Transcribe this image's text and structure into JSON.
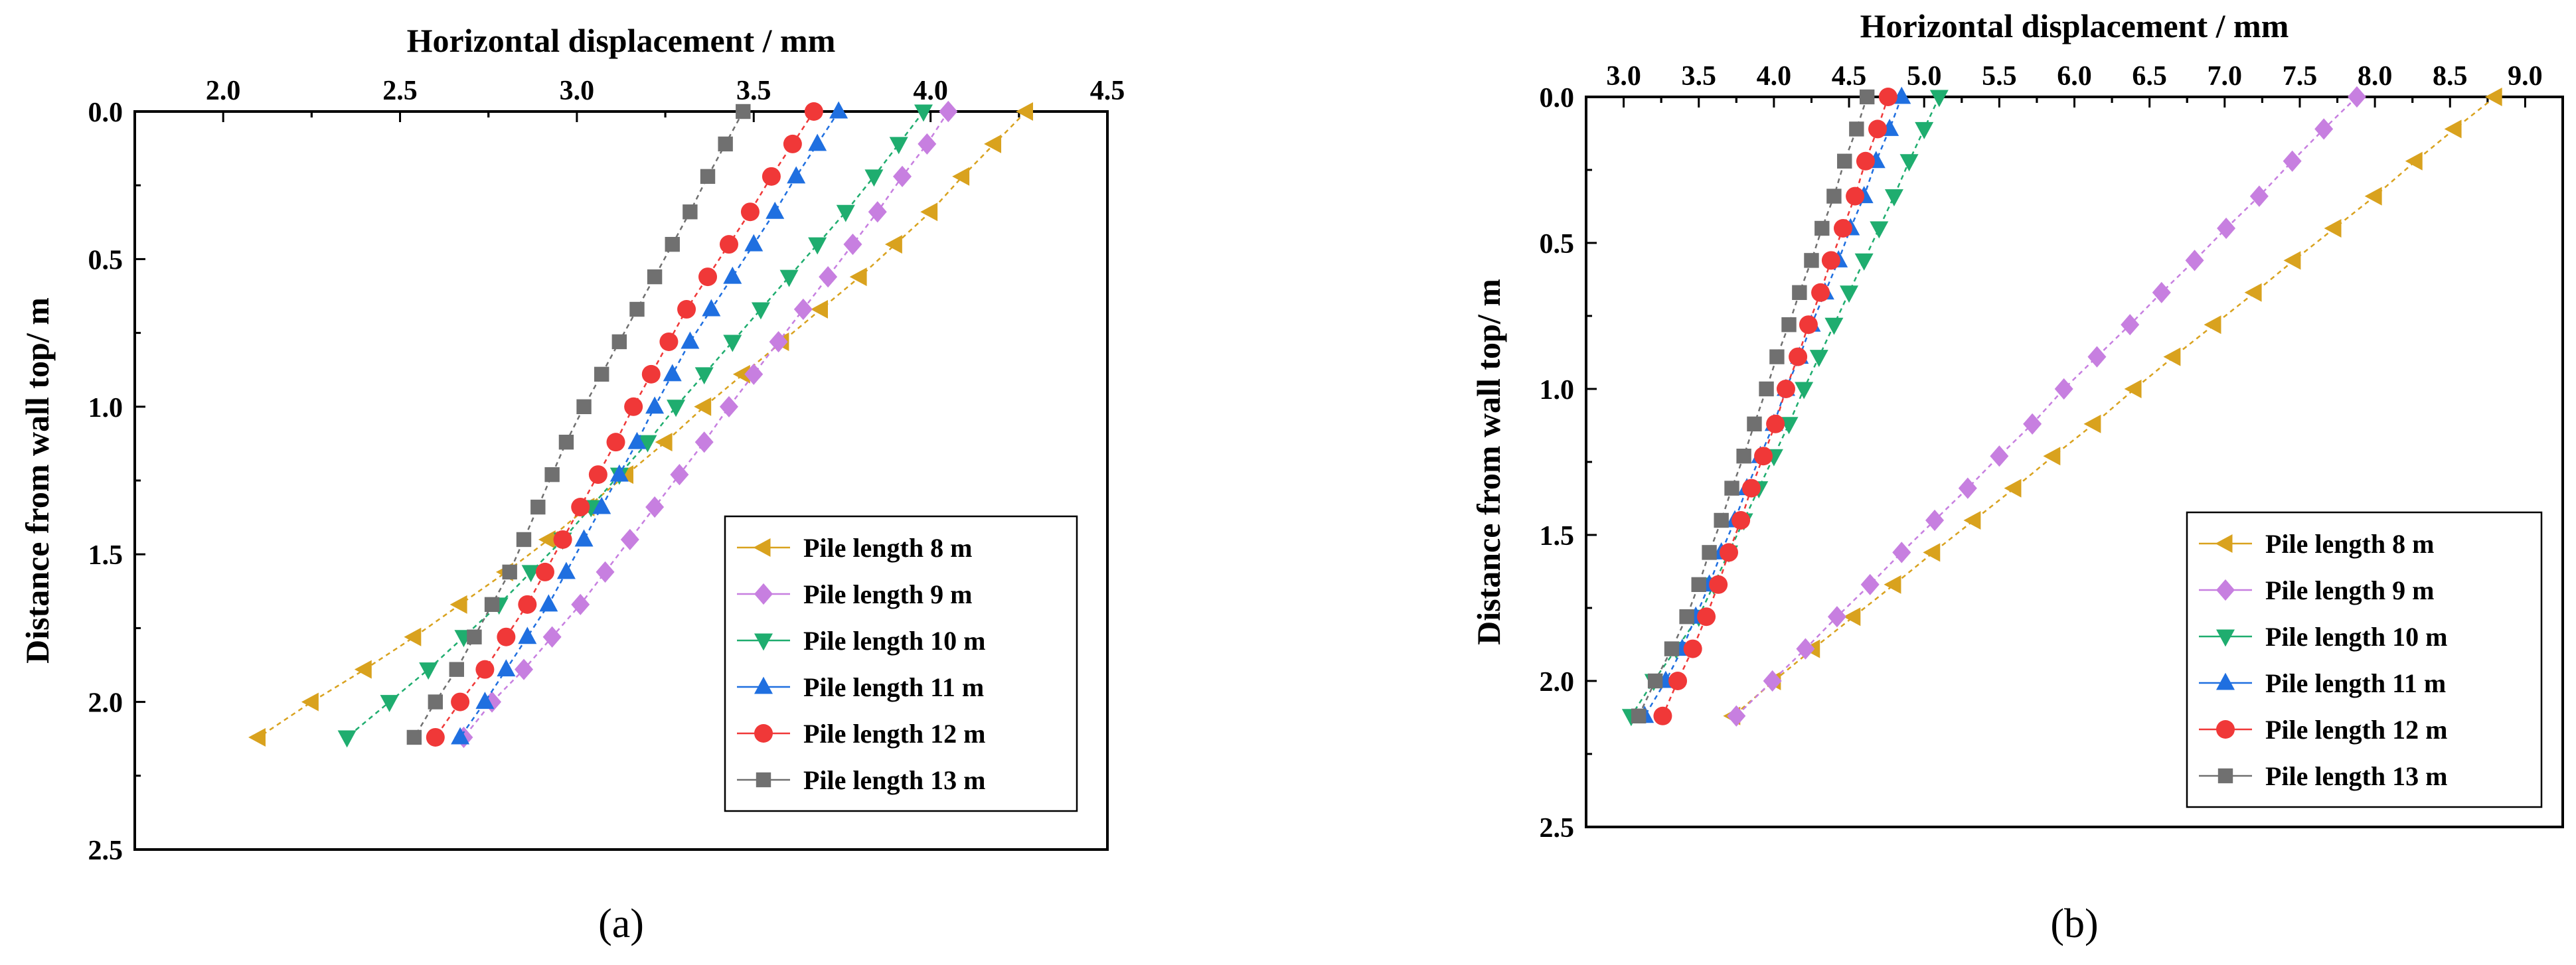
{
  "chart_data": [
    {
      "type": "line",
      "panel_label": "(a)",
      "xlabel": "Horizontal displacement / mm",
      "ylabel": "Distance from wall top/ m",
      "xlim": [
        1.75,
        4.5
      ],
      "ylim": [
        0,
        2.5
      ],
      "x_axis_position": "top",
      "y_inverted": true,
      "xticks": [
        "2.0",
        "2.5",
        "3.0",
        "3.5",
        "4.0",
        "4.5"
      ],
      "yticks": [
        "0.0",
        "0.5",
        "1.0",
        "1.5",
        "2.0",
        "2.5"
      ],
      "grid": false,
      "legend_position": "bottom-right",
      "series": [
        {
          "name": "Pile length 8 m",
          "marker": "triangle-left",
          "color": "#d9a21e",
          "points": [
            [
              4.27,
              0
            ],
            [
              4.18,
              0.11
            ],
            [
              4.09,
              0.22
            ],
            [
              4.0,
              0.34
            ],
            [
              3.9,
              0.45
            ],
            [
              3.8,
              0.56
            ],
            [
              3.69,
              0.67
            ],
            [
              3.58,
              0.78
            ],
            [
              3.47,
              0.89
            ],
            [
              3.36,
              1.0
            ],
            [
              3.25,
              1.12
            ],
            [
              3.14,
              1.23
            ],
            [
              3.03,
              1.34
            ],
            [
              2.92,
              1.45
            ],
            [
              2.8,
              1.56
            ],
            [
              2.67,
              1.67
            ],
            [
              2.54,
              1.78
            ],
            [
              2.4,
              1.89
            ],
            [
              2.25,
              2.0
            ],
            [
              2.1,
              2.12
            ]
          ]
        },
        {
          "name": "Pile length 9 m",
          "marker": "diamond",
          "color": "#c77fe0",
          "points": [
            [
              4.05,
              0
            ],
            [
              3.99,
              0.11
            ],
            [
              3.92,
              0.22
            ],
            [
              3.85,
              0.34
            ],
            [
              3.78,
              0.45
            ],
            [
              3.71,
              0.56
            ],
            [
              3.64,
              0.67
            ],
            [
              3.57,
              0.78
            ],
            [
              3.5,
              0.89
            ],
            [
              3.43,
              1.0
            ],
            [
              3.36,
              1.12
            ],
            [
              3.29,
              1.23
            ],
            [
              3.22,
              1.34
            ],
            [
              3.15,
              1.45
            ],
            [
              3.08,
              1.56
            ],
            [
              3.01,
              1.67
            ],
            [
              2.93,
              1.78
            ],
            [
              2.85,
              1.89
            ],
            [
              2.76,
              2.0
            ],
            [
              2.68,
              2.12
            ]
          ]
        },
        {
          "name": "Pile length 10 m",
          "marker": "triangle-down",
          "color": "#1fad6f",
          "points": [
            [
              3.98,
              0
            ],
            [
              3.91,
              0.11
            ],
            [
              3.84,
              0.22
            ],
            [
              3.76,
              0.34
            ],
            [
              3.68,
              0.45
            ],
            [
              3.6,
              0.56
            ],
            [
              3.52,
              0.67
            ],
            [
              3.44,
              0.78
            ],
            [
              3.36,
              0.89
            ],
            [
              3.28,
              1.0
            ],
            [
              3.2,
              1.12
            ],
            [
              3.12,
              1.23
            ],
            [
              3.04,
              1.34
            ],
            [
              2.96,
              1.45
            ],
            [
              2.87,
              1.56
            ],
            [
              2.78,
              1.67
            ],
            [
              2.68,
              1.78
            ],
            [
              2.58,
              1.89
            ],
            [
              2.47,
              2.0
            ],
            [
              2.35,
              2.12
            ]
          ]
        },
        {
          "name": "Pile length 11 m",
          "marker": "triangle-up",
          "color": "#1f6fe0",
          "points": [
            [
              3.74,
              0
            ],
            [
              3.68,
              0.11
            ],
            [
              3.62,
              0.22
            ],
            [
              3.56,
              0.34
            ],
            [
              3.5,
              0.45
            ],
            [
              3.44,
              0.56
            ],
            [
              3.38,
              0.67
            ],
            [
              3.32,
              0.78
            ],
            [
              3.27,
              0.89
            ],
            [
              3.22,
              1.0
            ],
            [
              3.17,
              1.12
            ],
            [
              3.12,
              1.23
            ],
            [
              3.07,
              1.34
            ],
            [
              3.02,
              1.45
            ],
            [
              2.97,
              1.56
            ],
            [
              2.92,
              1.67
            ],
            [
              2.86,
              1.78
            ],
            [
              2.8,
              1.89
            ],
            [
              2.74,
              2.0
            ],
            [
              2.67,
              2.12
            ]
          ]
        },
        {
          "name": "Pile length 12 m",
          "marker": "circle",
          "color": "#f03838",
          "points": [
            [
              3.67,
              0
            ],
            [
              3.61,
              0.11
            ],
            [
              3.55,
              0.22
            ],
            [
              3.49,
              0.34
            ],
            [
              3.43,
              0.45
            ],
            [
              3.37,
              0.56
            ],
            [
              3.31,
              0.67
            ],
            [
              3.26,
              0.78
            ],
            [
              3.21,
              0.89
            ],
            [
              3.16,
              1.0
            ],
            [
              3.11,
              1.12
            ],
            [
              3.06,
              1.23
            ],
            [
              3.01,
              1.34
            ],
            [
              2.96,
              1.45
            ],
            [
              2.91,
              1.56
            ],
            [
              2.86,
              1.67
            ],
            [
              2.8,
              1.78
            ],
            [
              2.74,
              1.89
            ],
            [
              2.67,
              2.0
            ],
            [
              2.6,
              2.12
            ]
          ]
        },
        {
          "name": "Pile length 13 m",
          "marker": "square",
          "color": "#707070",
          "points": [
            [
              3.47,
              0
            ],
            [
              3.42,
              0.11
            ],
            [
              3.37,
              0.22
            ],
            [
              3.32,
              0.34
            ],
            [
              3.27,
              0.45
            ],
            [
              3.22,
              0.56
            ],
            [
              3.17,
              0.67
            ],
            [
              3.12,
              0.78
            ],
            [
              3.07,
              0.89
            ],
            [
              3.02,
              1.0
            ],
            [
              2.97,
              1.12
            ],
            [
              2.93,
              1.23
            ],
            [
              2.89,
              1.34
            ],
            [
              2.85,
              1.45
            ],
            [
              2.81,
              1.56
            ],
            [
              2.76,
              1.67
            ],
            [
              2.71,
              1.78
            ],
            [
              2.66,
              1.89
            ],
            [
              2.6,
              2.0
            ],
            [
              2.54,
              2.12
            ]
          ]
        }
      ]
    },
    {
      "type": "line",
      "panel_label": "(b)",
      "xlabel": "Horizontal displacement / mm",
      "ylabel": "Distance from wall top/ m",
      "xlim": [
        2.75,
        9.25
      ],
      "ylim": [
        0,
        2.5
      ],
      "x_axis_position": "top",
      "y_inverted": true,
      "xticks": [
        "3.0",
        "3.5",
        "4.0",
        "4.5",
        "5.0",
        "5.5",
        "6.0",
        "6.5",
        "7.0",
        "7.5",
        "8.0",
        "8.5",
        "9.0"
      ],
      "yticks": [
        "0.0",
        "0.5",
        "1.0",
        "1.5",
        "2.0",
        "2.5"
      ],
      "grid": false,
      "legend_position": "bottom-right",
      "series": [
        {
          "name": "Pile length 8 m",
          "marker": "triangle-left",
          "color": "#d9a21e",
          "points": [
            [
              8.8,
              0
            ],
            [
              8.53,
              0.11
            ],
            [
              8.27,
              0.22
            ],
            [
              8.0,
              0.34
            ],
            [
              7.73,
              0.45
            ],
            [
              7.46,
              0.56
            ],
            [
              7.2,
              0.67
            ],
            [
              6.93,
              0.78
            ],
            [
              6.66,
              0.89
            ],
            [
              6.4,
              1.0
            ],
            [
              6.13,
              1.12
            ],
            [
              5.86,
              1.23
            ],
            [
              5.6,
              1.34
            ],
            [
              5.33,
              1.45
            ],
            [
              5.06,
              1.56
            ],
            [
              4.8,
              1.67
            ],
            [
              4.53,
              1.78
            ],
            [
              4.26,
              1.89
            ],
            [
              4.0,
              2.0
            ],
            [
              3.73,
              2.12
            ]
          ]
        },
        {
          "name": "Pile length 9 m",
          "marker": "diamond",
          "color": "#c77fe0",
          "points": [
            [
              7.88,
              0
            ],
            [
              7.66,
              0.11
            ],
            [
              7.45,
              0.22
            ],
            [
              7.23,
              0.34
            ],
            [
              7.01,
              0.45
            ],
            [
              6.8,
              0.56
            ],
            [
              6.58,
              0.67
            ],
            [
              6.37,
              0.78
            ],
            [
              6.15,
              0.89
            ],
            [
              5.93,
              1.0
            ],
            [
              5.72,
              1.12
            ],
            [
              5.5,
              1.23
            ],
            [
              5.29,
              1.34
            ],
            [
              5.07,
              1.45
            ],
            [
              4.85,
              1.56
            ],
            [
              4.64,
              1.67
            ],
            [
              4.42,
              1.78
            ],
            [
              4.21,
              1.89
            ],
            [
              3.99,
              2.0
            ],
            [
              3.75,
              2.12
            ]
          ]
        },
        {
          "name": "Pile length 10 m",
          "marker": "triangle-down",
          "color": "#1fad6f",
          "points": [
            [
              5.1,
              0
            ],
            [
              5.0,
              0.11
            ],
            [
              4.9,
              0.22
            ],
            [
              4.8,
              0.34
            ],
            [
              4.7,
              0.45
            ],
            [
              4.6,
              0.56
            ],
            [
              4.5,
              0.67
            ],
            [
              4.4,
              0.78
            ],
            [
              4.3,
              0.89
            ],
            [
              4.2,
              1.0
            ],
            [
              4.1,
              1.12
            ],
            [
              4.0,
              1.23
            ],
            [
              3.9,
              1.34
            ],
            [
              3.8,
              1.45
            ],
            [
              3.7,
              1.56
            ],
            [
              3.6,
              1.67
            ],
            [
              3.5,
              1.78
            ],
            [
              3.35,
              1.89
            ],
            [
              3.2,
              2.0
            ],
            [
              3.05,
              2.12
            ]
          ]
        },
        {
          "name": "Pile length 11 m",
          "marker": "triangle-up",
          "color": "#1f6fe0",
          "points": [
            [
              4.85,
              0
            ],
            [
              4.77,
              0.11
            ],
            [
              4.68,
              0.22
            ],
            [
              4.6,
              0.34
            ],
            [
              4.51,
              0.45
            ],
            [
              4.43,
              0.56
            ],
            [
              4.34,
              0.67
            ],
            [
              4.25,
              0.78
            ],
            [
              4.17,
              0.89
            ],
            [
              4.08,
              1.0
            ],
            [
              4.0,
              1.12
            ],
            [
              3.91,
              1.23
            ],
            [
              3.82,
              1.34
            ],
            [
              3.74,
              1.45
            ],
            [
              3.65,
              1.56
            ],
            [
              3.57,
              1.67
            ],
            [
              3.48,
              1.78
            ],
            [
              3.39,
              1.89
            ],
            [
              3.28,
              2.0
            ],
            [
              3.14,
              2.12
            ]
          ]
        },
        {
          "name": "Pile length 12 m",
          "marker": "circle",
          "color": "#f03838",
          "points": [
            [
              4.76,
              0
            ],
            [
              4.69,
              0.11
            ],
            [
              4.61,
              0.22
            ],
            [
              4.54,
              0.34
            ],
            [
              4.46,
              0.45
            ],
            [
              4.38,
              0.56
            ],
            [
              4.31,
              0.67
            ],
            [
              4.23,
              0.78
            ],
            [
              4.16,
              0.89
            ],
            [
              4.08,
              1.0
            ],
            [
              4.01,
              1.12
            ],
            [
              3.93,
              1.23
            ],
            [
              3.85,
              1.34
            ],
            [
              3.78,
              1.45
            ],
            [
              3.7,
              1.56
            ],
            [
              3.63,
              1.67
            ],
            [
              3.55,
              1.78
            ],
            [
              3.46,
              1.89
            ],
            [
              3.36,
              2.0
            ],
            [
              3.26,
              2.12
            ]
          ]
        },
        {
          "name": "Pile length 13 m",
          "marker": "square",
          "color": "#707070",
          "points": [
            [
              4.62,
              0
            ],
            [
              4.55,
              0.11
            ],
            [
              4.47,
              0.22
            ],
            [
              4.4,
              0.34
            ],
            [
              4.32,
              0.45
            ],
            [
              4.25,
              0.56
            ],
            [
              4.17,
              0.67
            ],
            [
              4.1,
              0.78
            ],
            [
              4.02,
              0.89
            ],
            [
              3.95,
              1.0
            ],
            [
              3.87,
              1.12
            ],
            [
              3.8,
              1.23
            ],
            [
              3.72,
              1.34
            ],
            [
              3.65,
              1.45
            ],
            [
              3.57,
              1.56
            ],
            [
              3.5,
              1.67
            ],
            [
              3.42,
              1.78
            ],
            [
              3.32,
              1.89
            ],
            [
              3.21,
              2.0
            ],
            [
              3.1,
              2.12
            ]
          ]
        }
      ]
    }
  ]
}
